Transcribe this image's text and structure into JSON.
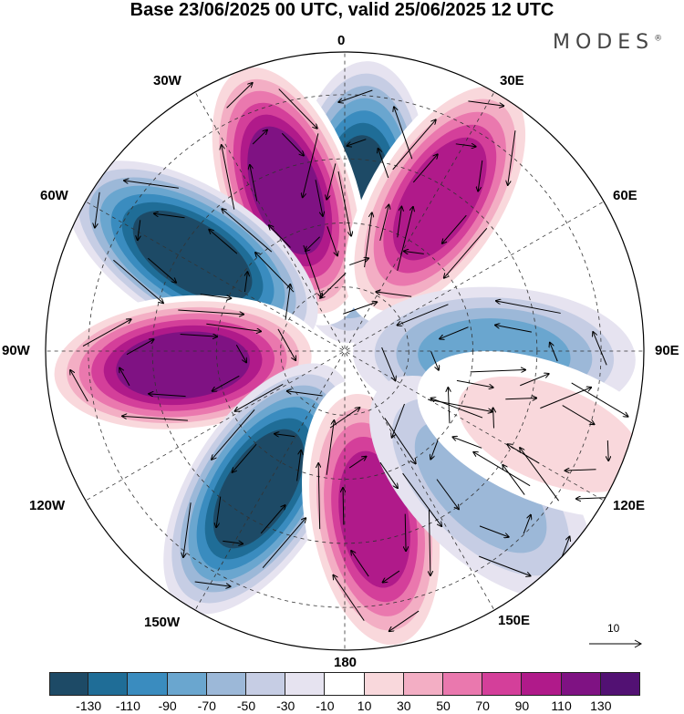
{
  "title": "Base 23/06/2025 00 UTC, valid 25/06/2025 12 UTC",
  "brand": "MODES",
  "brand_mark": "®",
  "longitude_labels": {
    "top": "0",
    "top_right": "30E",
    "right_upper": "60E",
    "right": "90E",
    "right_lower": "120E",
    "bottom_right": "150E",
    "bottom": "180",
    "bottom_left": "150W",
    "left_lower": "120W",
    "left": "90W",
    "left_upper": "60W",
    "top_left": "30W"
  },
  "reference_vector": {
    "label": "10"
  },
  "colorbar": {
    "colors": [
      "#1d4a66",
      "#1f6d97",
      "#3a8cbf",
      "#6aa6cf",
      "#9cb8d8",
      "#c6cde4",
      "#e6e3f0",
      "#ffffff",
      "#f9d8dc",
      "#f3aec4",
      "#ea78ae",
      "#d43f9a",
      "#b01a8a",
      "#7f1283",
      "#521173"
    ],
    "tick_labels": [
      "-130",
      "-110",
      "-90",
      "-70",
      "-50",
      "-30",
      "-10",
      "10",
      "30",
      "50",
      "70",
      "90",
      "110",
      "130"
    ]
  },
  "anomaly_lobes": [
    {
      "lon": 5,
      "lat": 55,
      "value": -130
    },
    {
      "lon": -20,
      "lat": 50,
      "value": 130
    },
    {
      "lon": 32,
      "lat": 48,
      "value": 110
    },
    {
      "lon": -58,
      "lat": 48,
      "value": -130
    },
    {
      "lon": -95,
      "lat": 52,
      "value": 130
    },
    {
      "lon": -148,
      "lat": 52,
      "value": -130
    },
    {
      "lon": 170,
      "lat": 50,
      "value": 110
    },
    {
      "lon": 92,
      "lat": 55,
      "value": -70
    },
    {
      "lon": 135,
      "lat": 45,
      "value": -50
    },
    {
      "lon": 112,
      "lat": 38,
      "value": 30
    }
  ]
}
